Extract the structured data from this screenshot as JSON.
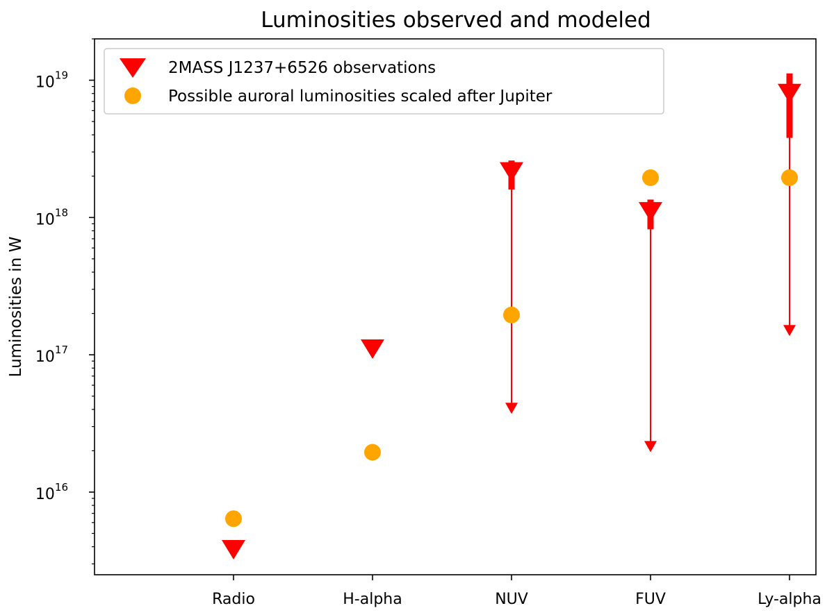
{
  "chart_data": {
    "type": "scatter",
    "title": "Luminosities observed and modeled",
    "xlabel": "",
    "ylabel": "Luminosities in W",
    "yscale": "log",
    "ylim": [
      2500000000000000.0,
      2e+19
    ],
    "y_ticks": [
      {
        "value": 1e+16,
        "base": "10",
        "exp": "16"
      },
      {
        "value": 1e+17,
        "base": "10",
        "exp": "17"
      },
      {
        "value": 1e+18,
        "base": "10",
        "exp": "18"
      },
      {
        "value": 1e+19,
        "base": "10",
        "exp": "19"
      }
    ],
    "categories": [
      "Radio",
      "H-alpha",
      "NUV",
      "FUV",
      "Ly-alpha"
    ],
    "grid": false,
    "legend_position": "top-left",
    "series": [
      {
        "name": "2MASS J1237+6526 observations",
        "marker": "triangle-down",
        "color": "#ff0000",
        "values": [
          3800000000000000.0,
          1.1e+17,
          2.15e+18,
          1.1e+18,
          8e+18
        ],
        "upper_limits": [
          null,
          null,
          3.8e+16,
          2e+16,
          1.4e+17
        ],
        "error_top": [
          null,
          null,
          2.6e+18,
          1.35e+18,
          1.12e+19
        ],
        "error_bottom": [
          null,
          null,
          1.6e+18,
          8.2e+17,
          3.8e+18
        ]
      },
      {
        "name": "Possible auroral luminosities scaled after Jupiter",
        "marker": "circle",
        "color": "#ffa500",
        "values": [
          6400000000000000.0,
          1.95e+16,
          1.95e+17,
          1.95e+18,
          1.95e+18
        ]
      }
    ]
  }
}
